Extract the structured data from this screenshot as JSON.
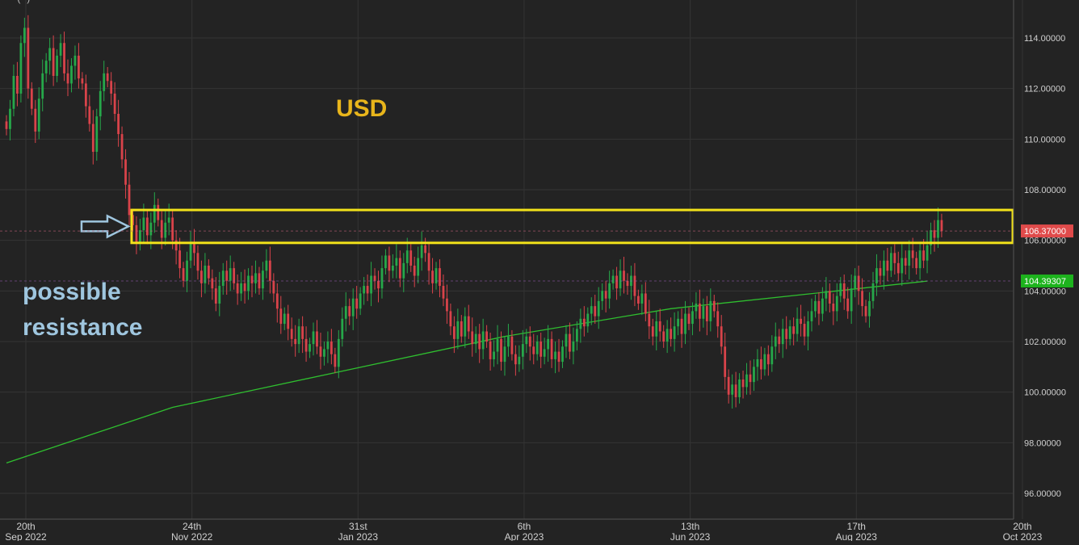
{
  "chart_data": {
    "type": "candlestick",
    "instrument": "USD",
    "price_axis": {
      "range": [
        94.8,
        115.0
      ],
      "ticks": [
        "114.00000",
        "112.00000",
        "110.00000",
        "108.00000",
        "106.00000",
        "104.00000",
        "102.00000",
        "100.00000",
        "98.00000",
        "96.00000"
      ],
      "tick_values": [
        114,
        112,
        110,
        108,
        106,
        104,
        102,
        100,
        98,
        96
      ]
    },
    "time_axis": {
      "labels": [
        {
          "day": "20th",
          "month": "Sep 2022",
          "index": 0
        },
        {
          "day": "24th",
          "month": "Nov 2022",
          "index": 46
        },
        {
          "day": "31st",
          "month": "Jan 2023",
          "index": 92
        },
        {
          "day": "6th",
          "month": "Apr 2023",
          "index": 138
        },
        {
          "day": "13th",
          "month": "Jun 2023",
          "index": 184
        },
        {
          "day": "17th",
          "month": "Aug 2023",
          "index": 230
        },
        {
          "day": "20th",
          "month": "Oct 2023",
          "index": 276
        }
      ],
      "total_slots": 282
    },
    "last_price": {
      "value": 106.37,
      "label": "106.37000",
      "color": "#e04b4b"
    },
    "ma_price": {
      "value": 104.39307,
      "label": "104.39307",
      "color": "#1db31d"
    },
    "moving_average": {
      "color": "#2fbf2f",
      "points": [
        [
          0,
          97.2
        ],
        [
          46,
          99.4
        ],
        [
          92,
          100.8
        ],
        [
          138,
          102.2
        ],
        [
          184,
          103.3
        ],
        [
          230,
          104.0
        ],
        [
          255,
          104.39
        ]
      ]
    },
    "closes": [
      110.4,
      111.2,
      112.5,
      111.8,
      113.8,
      114.4,
      112.0,
      111.2,
      110.3,
      111.6,
      112.6,
      113.1,
      113.6,
      112.5,
      113.3,
      113.8,
      112.6,
      112.2,
      112.9,
      113.3,
      112.4,
      112.2,
      111.3,
      110.6,
      109.5,
      110.9,
      111.9,
      112.6,
      112.3,
      111.8,
      111.0,
      110.2,
      109.2,
      108.2,
      107.0,
      106.6,
      105.9,
      106.4,
      106.9,
      106.2,
      106.7,
      107.4,
      106.8,
      106.1,
      106.7,
      106.9,
      106.0,
      105.6,
      104.9,
      104.4,
      105.2,
      105.9,
      105.5,
      104.8,
      104.3,
      105.0,
      104.5,
      104.1,
      103.5,
      104.2,
      104.8,
      104.4,
      104.9,
      104.3,
      103.9,
      104.3,
      104.0,
      104.6,
      104.3,
      104.7,
      104.1,
      104.8,
      105.2,
      104.4,
      103.9,
      103.3,
      102.7,
      103.1,
      102.5,
      102.1,
      101.9,
      102.6,
      102.1,
      101.6,
      101.9,
      102.4,
      101.8,
      101.4,
      101.7,
      102.0,
      101.5,
      101.0,
      102.1,
      102.9,
      103.4,
      103.0,
      103.7,
      103.3,
      103.9,
      104.2,
      103.9,
      104.6,
      104.4,
      104.1,
      104.9,
      105.4,
      104.8,
      105.0,
      105.3,
      104.5,
      105.1,
      105.6,
      105.0,
      104.6,
      105.3,
      105.8,
      105.5,
      104.8,
      104.3,
      104.9,
      104.2,
      103.7,
      103.2,
      102.6,
      102.1,
      102.8,
      102.2,
      103.0,
      102.4,
      101.9,
      102.3,
      101.7,
      102.4,
      102.0,
      101.3,
      101.6,
      102.1,
      101.2,
      101.8,
      102.2,
      101.5,
      101.1,
      101.4,
      101.9,
      102.2,
      101.8,
      101.5,
      102.0,
      101.4,
      101.7,
      102.1,
      101.3,
      101.6,
      101.2,
      101.8,
      102.3,
      101.6,
      102.0,
      102.5,
      102.9,
      102.6,
      103.1,
      103.4,
      103.0,
      103.6,
      104.0,
      103.7,
      104.3,
      104.6,
      104.1,
      104.8,
      104.4,
      104.2,
      104.6,
      103.8,
      103.5,
      103.9,
      103.1,
      102.6,
      102.2,
      102.8,
      102.4,
      102.0,
      102.5,
      102.1,
      102.6,
      102.9,
      102.3,
      103.1,
      102.7,
      103.2,
      103.5,
      102.9,
      103.4,
      102.8,
      103.6,
      103.2,
      102.6,
      101.8,
      100.6,
      99.9,
      100.3,
      99.8,
      100.5,
      100.2,
      100.7,
      100.4,
      101.0,
      101.3,
      100.9,
      101.5,
      101.1,
      101.8,
      102.2,
      101.9,
      102.5,
      102.1,
      102.6,
      102.3,
      102.9,
      102.7,
      102.2,
      102.8,
      103.2,
      103.6,
      103.1,
      103.7,
      104.0,
      103.5,
      103.2,
      103.8,
      104.3,
      103.7,
      103.2,
      104.1,
      104.6,
      104.0,
      103.4,
      103.0,
      103.6,
      104.3,
      104.9,
      104.6,
      105.2,
      104.8,
      105.5,
      105.1,
      104.7,
      105.3,
      105.0,
      105.6,
      105.3,
      104.9,
      105.6,
      105.2,
      105.8,
      106.4,
      106.1,
      106.8,
      106.37
    ],
    "resistance_zone": {
      "low": 105.9,
      "high": 107.2,
      "start_index": 36,
      "end_index": 282,
      "color": "#f2e21a"
    }
  },
  "annotations": {
    "title": "USD",
    "title_color": "#e8b51b",
    "note_lines": [
      "possible",
      "resistance"
    ],
    "note_color": "#9fc6df",
    "arrow_color": "#9fc6df",
    "top_left_text": "··· (··) · ··· ·····"
  },
  "colors": {
    "background": "#232323",
    "grid": "#343434",
    "up": "#26a84a",
    "down": "#d9434a",
    "axis_text": "#cfcfcf"
  }
}
